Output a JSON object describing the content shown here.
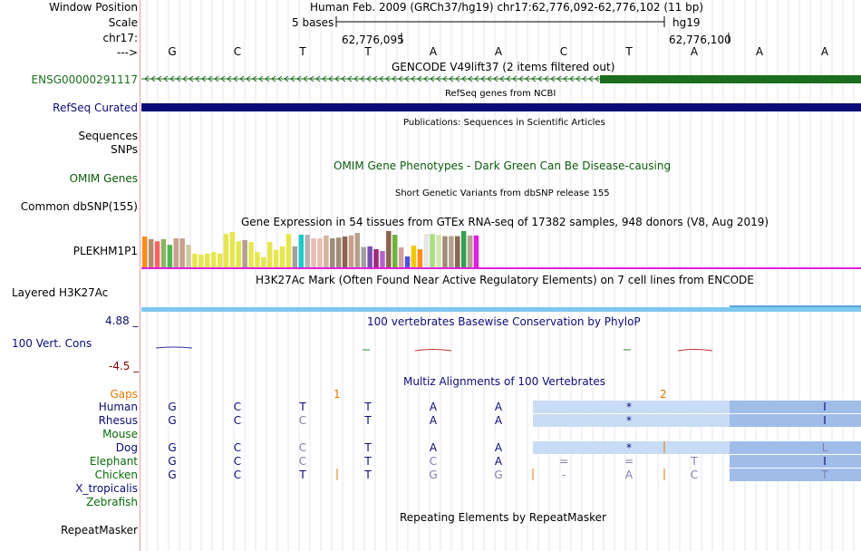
{
  "colors": {
    "gencode_green": "#1b6e1b",
    "refseq_navy": "#0c0c78",
    "label_blue": "#0c0c78",
    "omim_green": "#0a5a0a",
    "h3k27ac_blue": "#7ec8ee",
    "gtex_pink": "#e020e0",
    "gaps_orange": "#e07800",
    "multiz_block": "#c8dcf5",
    "multiz_block_dark": "#a0bce8"
  },
  "header": {
    "window_position_label": "Window Position",
    "window_position_value": "Human Feb. 2009 (GRCh37/hg19)   chr17:62,776,092-62,776,102 (11 bp)",
    "scale_label": "Scale",
    "scale_bar_text": "5 bases",
    "assembly": "hg19",
    "chrom_label": "chr17:",
    "coord_left": "62,776,095",
    "coord_right": "62,776,100",
    "strand_label": "--->",
    "bases": [
      "G",
      "C",
      "T",
      "T",
      "A",
      "A",
      "C",
      "T",
      "A",
      "A",
      "A"
    ]
  },
  "tracks": {
    "gencode": {
      "title": "GENCODE V49lift37 (2 items filtered out)",
      "label": "ENSG00000291117"
    },
    "refseq": {
      "title": "RefSeq genes from NCBI",
      "label": "RefSeq Curated"
    },
    "publications": {
      "title": "Publications: Sequences in Scientific Articles",
      "label_line1": "Sequences",
      "label_line2": "SNPs"
    },
    "omim": {
      "title": "OMIM Gene Phenotypes - Dark Green Can Be Disease-causing",
      "label": "OMIM Genes"
    },
    "dbsnp": {
      "title": "Short Genetic Variants from dbSNP release 155",
      "label": "Common dbSNP(155)"
    },
    "gtex": {
      "title": "Gene Expression in 54 tissues from GTEx RNA-seq of 17382 samples, 948 donors (V8, Aug 2019)",
      "label": "PLEKHM1P1",
      "bar_values": [
        0.85,
        0.78,
        0.72,
        0.78,
        0.62,
        0.8,
        0.8,
        0.62,
        0.38,
        0.35,
        0.38,
        0.42,
        0.38,
        0.92,
        0.98,
        0.72,
        0.75,
        0.7,
        0.42,
        0.28,
        0.7,
        0.48,
        0.58,
        0.92,
        0.58,
        0.9,
        0.9,
        0.8,
        0.8,
        0.88,
        0.8,
        0.82,
        0.85,
        0.88,
        0.95,
        0.56,
        0.58,
        0.5,
        0.45,
        1.0,
        0.9,
        0.55,
        0.3,
        0.6,
        0.5,
        0.92,
        0.92,
        0.9,
        0.86,
        0.86,
        0.86,
        1.0,
        0.88,
        0.88
      ],
      "bar_colors": [
        "#ff8c1a",
        "#b48c6e",
        "#ff6464",
        "#8cb464",
        "#50b450",
        "#c8a08c",
        "#c8a08c",
        "#d2c8a0",
        "#e6e650",
        "#e6e650",
        "#e6e650",
        "#e6e650",
        "#e6e650",
        "#e6e650",
        "#e6e650",
        "#e6e650",
        "#b4a08c",
        "#e6e650",
        "#e6e650",
        "#e6e650",
        "#e6e650",
        "#e6e650",
        "#e6e650",
        "#e6e650",
        "#a0a0a0",
        "#20c8c8",
        "#b4b4b4",
        "#e6beb4",
        "#e6beb4",
        "#d2b4a0",
        "#a08c78",
        "#a08c78",
        "#8c6450",
        "#c8a08c",
        "#b4a08c",
        "#a0a0a0",
        "#7850b4",
        "#a02878",
        "#b464c8",
        "#8c6450",
        "#6eb43c",
        "#d2a0a0",
        "#5050dc",
        "#f0c800",
        "#ff8c1a",
        "#e6e6e6",
        "#aadc82",
        "#d2e6aa",
        "#a08c78",
        "#b4a08c",
        "#8c6450",
        "#32a050",
        "#b4a08c",
        "#e020e0"
      ]
    },
    "h3k27ac": {
      "title": "H3K27Ac Mark (Often Found Near Active Regulatory Elements) on 7 cell lines from ENCODE",
      "label": "Layered H3K27Ac"
    },
    "phylop": {
      "title": "100 vertebrates Basewise Conservation by PhyloP",
      "label": "100 Vert. Cons",
      "max_label": "4.88 _",
      "min_label": "-4.5 _"
    },
    "multiz": {
      "title": "Multiz Alignments of 100 Vertebrates",
      "gaps_label": "Gaps",
      "gap_markers": [
        "1",
        "2"
      ],
      "species": [
        {
          "name": "Human",
          "bases": [
            "G",
            "C",
            "T",
            "T",
            "A",
            "A",
            "",
            "*",
            "",
            "",
            "I"
          ]
        },
        {
          "name": "Rhesus",
          "bases": [
            "G",
            "C",
            "C",
            "T",
            "A",
            "A",
            "",
            "*",
            "",
            "",
            "I"
          ]
        },
        {
          "name": "Mouse",
          "bases": [
            "",
            "",
            "",
            "",
            "",
            "",
            "",
            "",
            "",
            "",
            ""
          ]
        },
        {
          "name": "Dog",
          "bases": [
            "G",
            "C",
            "C",
            "T",
            "A",
            "A",
            "",
            "*",
            "",
            "",
            "L"
          ]
        },
        {
          "name": "Elephant",
          "bases": [
            "G",
            "C",
            "C",
            "T",
            "C",
            "A",
            "=",
            "=",
            "T",
            "",
            "I"
          ]
        },
        {
          "name": "Chicken",
          "bases": [
            "G",
            "C",
            "T",
            "T",
            "G",
            "G",
            "-",
            "A",
            "C",
            "",
            "T"
          ]
        },
        {
          "name": "X_tropicalis",
          "bases": [
            "",
            "",
            "",
            "",
            "",
            "",
            "",
            "",
            "",
            "",
            ""
          ]
        },
        {
          "name": "Zebrafish",
          "bases": [
            "",
            "",
            "",
            "",
            "",
            "",
            "",
            "",
            "",
            "",
            ""
          ]
        }
      ]
    },
    "repeatmasker": {
      "title": "Repeating Elements by RepeatMasker",
      "label": "RepeatMasker"
    }
  }
}
